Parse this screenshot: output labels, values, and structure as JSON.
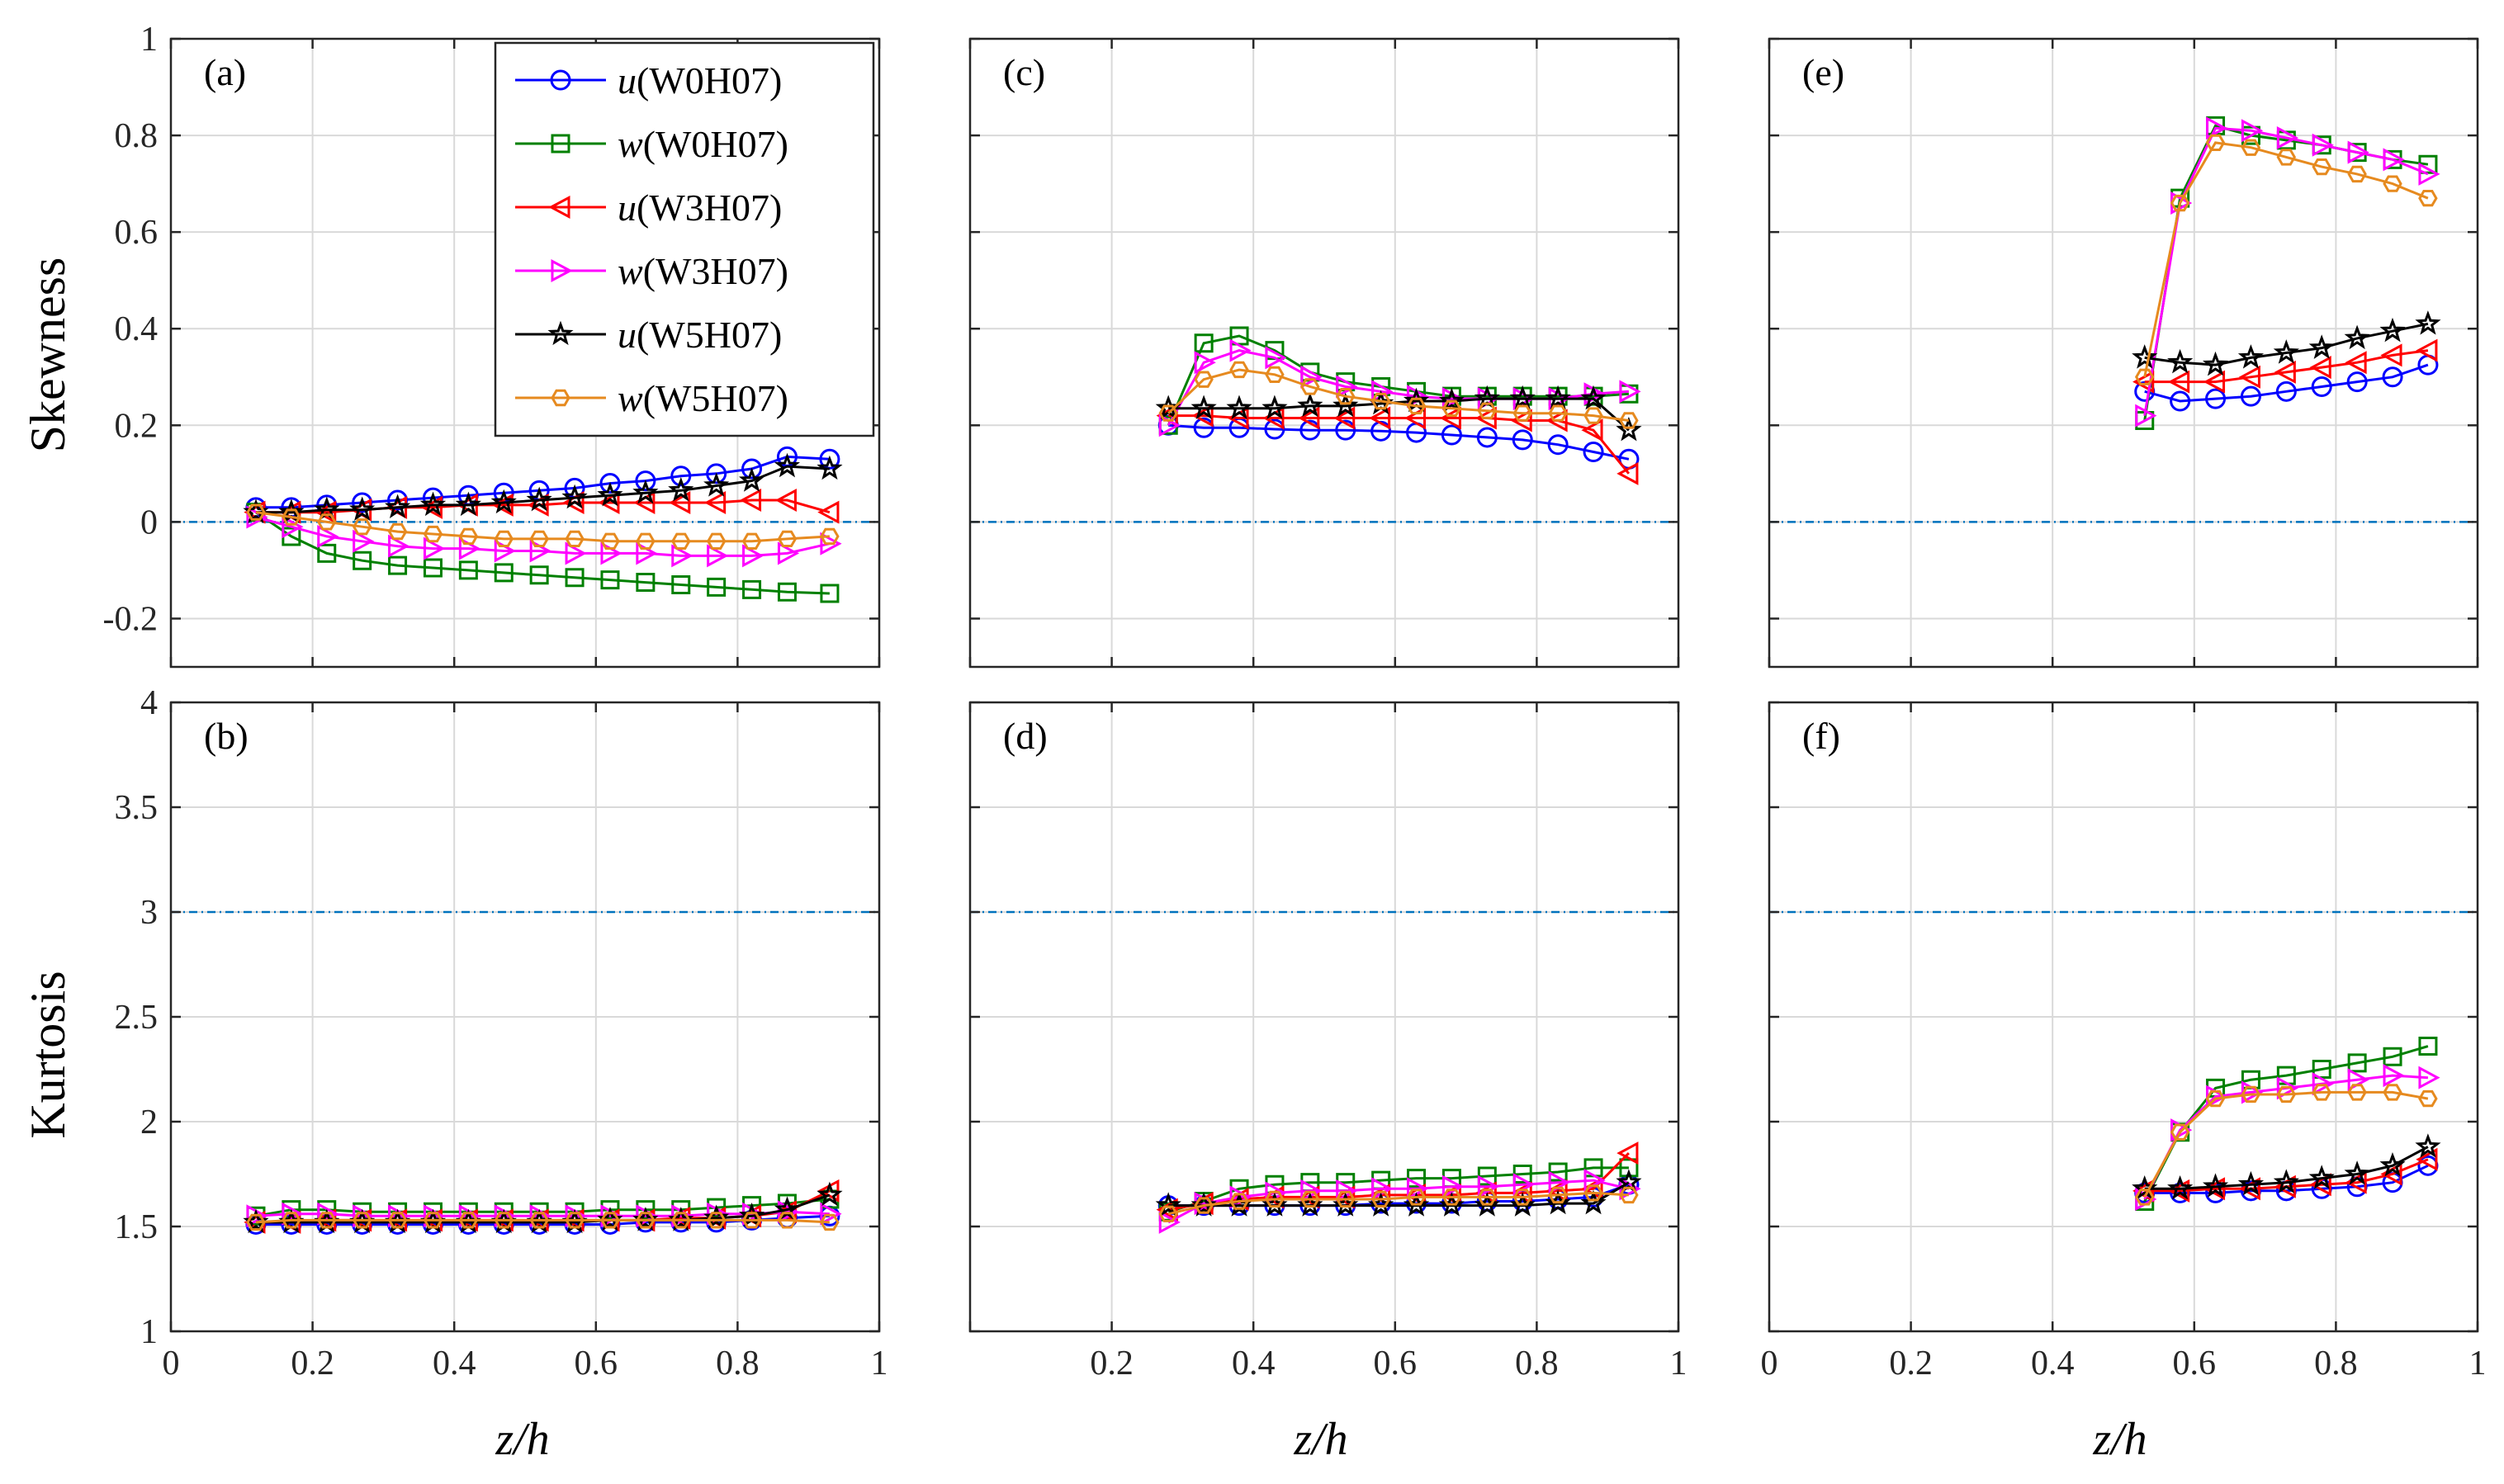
{
  "figure": {
    "ylabel_top": "Skewness",
    "ylabel_bottom": "Kurtosis",
    "xlabel_z": "z",
    "xlabel_rest": "/h"
  },
  "colors": {
    "u_W0H07": "#0000ff",
    "w_W0H07": "#008000",
    "u_W3H07": "#ff0000",
    "w_W3H07": "#ff00ff",
    "u_W5H07": "#000000",
    "w_W5H07": "#e68a1f",
    "reference": "#0072bd",
    "grid": "#d9d9d9",
    "axis": "#262626"
  },
  "legend": [
    {
      "var": "u",
      "label": "(W0H07)",
      "series": "u_W0H07",
      "marker": "circle-icon"
    },
    {
      "var": "w",
      "label": "(W0H07)",
      "series": "w_W0H07",
      "marker": "square-icon"
    },
    {
      "var": "u",
      "label": "(W3H07)",
      "series": "u_W3H07",
      "marker": "triangle-left-icon"
    },
    {
      "var": "w",
      "label": "(W3H07)",
      "series": "w_W3H07",
      "marker": "triangle-right-icon"
    },
    {
      "var": "u",
      "label": "(W5H07)",
      "series": "u_W5H07",
      "marker": "star-icon"
    },
    {
      "var": "w",
      "label": "(W5H07)",
      "series": "w_W5H07",
      "marker": "hexagon-icon"
    }
  ],
  "chart_data": [
    {
      "panel": "(a)",
      "type": "line",
      "row": "skewness",
      "xlim": [
        0,
        1
      ],
      "ylim": [
        -0.3,
        1
      ],
      "xticks": [
        "0",
        "0.2",
        "0.4",
        "0.6",
        "0.8",
        "1"
      ],
      "yticks": [
        "-0.2",
        "0",
        "0.2",
        "0.4",
        "0.6",
        "0.8",
        "1"
      ],
      "yticks_values": [
        -0.2,
        0,
        0.2,
        0.4,
        0.6,
        0.8,
        1
      ],
      "reference_y": 0,
      "x": [
        0.12,
        0.17,
        0.22,
        0.27,
        0.32,
        0.37,
        0.42,
        0.47,
        0.52,
        0.57,
        0.62,
        0.67,
        0.72,
        0.77,
        0.82,
        0.87,
        0.93
      ],
      "series": [
        {
          "name": "u(W0H07)",
          "key": "u_W0H07",
          "marker": "circle",
          "values": [
            0.03,
            0.03,
            0.035,
            0.04,
            0.045,
            0.05,
            0.055,
            0.06,
            0.065,
            0.07,
            0.08,
            0.085,
            0.095,
            0.1,
            0.11,
            0.135,
            0.13
          ]
        },
        {
          "name": "w(W0H07)",
          "key": "w_W0H07",
          "marker": "square",
          "values": [
            0.02,
            -0.03,
            -0.065,
            -0.08,
            -0.09,
            -0.095,
            -0.1,
            -0.105,
            -0.11,
            -0.115,
            -0.12,
            -0.125,
            -0.13,
            -0.135,
            -0.14,
            -0.145,
            -0.148
          ]
        },
        {
          "name": "u(W3H07)",
          "key": "u_W3H07",
          "marker": "triangle-left",
          "values": [
            0.02,
            0.02,
            0.02,
            0.025,
            0.03,
            0.03,
            0.035,
            0.035,
            0.035,
            0.04,
            0.04,
            0.04,
            0.04,
            0.04,
            0.045,
            0.045,
            0.02
          ]
        },
        {
          "name": "w(W3H07)",
          "key": "w_W3H07",
          "marker": "triangle-right",
          "values": [
            0.01,
            -0.01,
            -0.03,
            -0.04,
            -0.05,
            -0.055,
            -0.055,
            -0.06,
            -0.06,
            -0.065,
            -0.065,
            -0.065,
            -0.07,
            -0.07,
            -0.07,
            -0.065,
            -0.045
          ]
        },
        {
          "name": "u(W5H07)",
          "key": "u_W5H07",
          "marker": "star",
          "values": [
            0.02,
            0.02,
            0.025,
            0.025,
            0.03,
            0.035,
            0.035,
            0.04,
            0.045,
            0.05,
            0.055,
            0.06,
            0.065,
            0.075,
            0.085,
            0.115,
            0.11
          ]
        },
        {
          "name": "w(W5H07)",
          "key": "w_W5H07",
          "marker": "hexagon",
          "values": [
            0.02,
            0.01,
            0.0,
            -0.01,
            -0.02,
            -0.025,
            -0.03,
            -0.035,
            -0.035,
            -0.035,
            -0.04,
            -0.04,
            -0.04,
            -0.04,
            -0.04,
            -0.035,
            -0.03
          ]
        }
      ]
    },
    {
      "panel": "(b)",
      "type": "line",
      "row": "kurtosis",
      "xlim": [
        0,
        1
      ],
      "ylim": [
        1,
        4
      ],
      "xticks": [
        "0",
        "0.2",
        "0.4",
        "0.6",
        "0.8",
        "1"
      ],
      "yticks": [
        "1",
        "1.5",
        "2",
        "2.5",
        "3",
        "3.5",
        "4"
      ],
      "yticks_values": [
        1,
        1.5,
        2,
        2.5,
        3,
        3.5,
        4
      ],
      "reference_y": 3,
      "x": [
        0.12,
        0.17,
        0.22,
        0.27,
        0.32,
        0.37,
        0.42,
        0.47,
        0.52,
        0.57,
        0.62,
        0.67,
        0.72,
        0.77,
        0.82,
        0.87,
        0.93
      ],
      "series": [
        {
          "name": "u(W0H07)",
          "key": "u_W0H07",
          "marker": "circle",
          "values": [
            1.51,
            1.51,
            1.51,
            1.51,
            1.51,
            1.51,
            1.51,
            1.51,
            1.51,
            1.51,
            1.51,
            1.52,
            1.52,
            1.52,
            1.53,
            1.54,
            1.55
          ]
        },
        {
          "name": "w(W0H07)",
          "key": "w_W0H07",
          "marker": "square",
          "values": [
            1.55,
            1.58,
            1.58,
            1.57,
            1.57,
            1.57,
            1.57,
            1.57,
            1.57,
            1.57,
            1.58,
            1.58,
            1.58,
            1.59,
            1.6,
            1.61,
            1.63
          ]
        },
        {
          "name": "u(W3H07)",
          "key": "u_W3H07",
          "marker": "triangle-left",
          "values": [
            1.52,
            1.52,
            1.53,
            1.53,
            1.53,
            1.53,
            1.53,
            1.53,
            1.53,
            1.53,
            1.53,
            1.53,
            1.54,
            1.54,
            1.55,
            1.57,
            1.67
          ]
        },
        {
          "name": "w(W3H07)",
          "key": "w_W3H07",
          "marker": "triangle-right",
          "values": [
            1.55,
            1.56,
            1.56,
            1.55,
            1.55,
            1.55,
            1.55,
            1.55,
            1.55,
            1.55,
            1.55,
            1.55,
            1.55,
            1.56,
            1.56,
            1.57,
            1.56
          ]
        },
        {
          "name": "u(W5H07)",
          "key": "u_W5H07",
          "marker": "star",
          "values": [
            1.52,
            1.52,
            1.52,
            1.52,
            1.52,
            1.52,
            1.52,
            1.52,
            1.52,
            1.52,
            1.53,
            1.53,
            1.53,
            1.54,
            1.55,
            1.58,
            1.65
          ]
        },
        {
          "name": "w(W5H07)",
          "key": "w_W5H07",
          "marker": "hexagon",
          "values": [
            1.52,
            1.53,
            1.53,
            1.53,
            1.53,
            1.53,
            1.53,
            1.53,
            1.53,
            1.53,
            1.53,
            1.53,
            1.53,
            1.53,
            1.53,
            1.53,
            1.52
          ]
        }
      ]
    },
    {
      "panel": "(c)",
      "type": "line",
      "row": "skewness",
      "xlim": [
        0,
        1
      ],
      "ylim": [
        -0.3,
        1
      ],
      "xticks": [
        "",
        "0.2",
        "0.4",
        "0.6",
        "0.8",
        "1"
      ],
      "yticks": [],
      "yticks_values": [
        -0.2,
        0,
        0.2,
        0.4,
        0.6,
        0.8,
        1
      ],
      "reference_y": 0,
      "x": [
        0.28,
        0.33,
        0.38,
        0.43,
        0.48,
        0.53,
        0.58,
        0.63,
        0.68,
        0.73,
        0.78,
        0.83,
        0.88,
        0.93
      ],
      "series": [
        {
          "name": "u(W0H07)",
          "key": "u_W0H07",
          "marker": "circle",
          "values": [
            0.2,
            0.195,
            0.195,
            0.192,
            0.19,
            0.19,
            0.188,
            0.185,
            0.18,
            0.175,
            0.17,
            0.16,
            0.145,
            0.13
          ]
        },
        {
          "name": "w(W0H07)",
          "key": "w_W0H07",
          "marker": "square",
          "values": [
            0.2,
            0.37,
            0.385,
            0.355,
            0.31,
            0.29,
            0.28,
            0.27,
            0.26,
            0.26,
            0.26,
            0.26,
            0.26,
            0.265
          ]
        },
        {
          "name": "u(W3H07)",
          "key": "u_W3H07",
          "marker": "triangle-left",
          "values": [
            0.22,
            0.22,
            0.215,
            0.215,
            0.215,
            0.215,
            0.215,
            0.215,
            0.215,
            0.215,
            0.21,
            0.21,
            0.19,
            0.1
          ]
        },
        {
          "name": "w(W3H07)",
          "key": "w_W3H07",
          "marker": "triangle-right",
          "values": [
            0.2,
            0.33,
            0.355,
            0.34,
            0.3,
            0.28,
            0.27,
            0.26,
            0.255,
            0.255,
            0.255,
            0.255,
            0.265,
            0.27
          ]
        },
        {
          "name": "u(W5H07)",
          "key": "u_W5H07",
          "marker": "star",
          "values": [
            0.235,
            0.235,
            0.235,
            0.235,
            0.24,
            0.24,
            0.245,
            0.25,
            0.25,
            0.255,
            0.255,
            0.255,
            0.255,
            0.19
          ]
        },
        {
          "name": "w(W5H07)",
          "key": "w_W5H07",
          "marker": "hexagon",
          "values": [
            0.225,
            0.295,
            0.315,
            0.305,
            0.28,
            0.26,
            0.25,
            0.24,
            0.235,
            0.23,
            0.225,
            0.225,
            0.22,
            0.21
          ]
        }
      ]
    },
    {
      "panel": "(d)",
      "type": "line",
      "row": "kurtosis",
      "xlim": [
        0,
        1
      ],
      "ylim": [
        1,
        4
      ],
      "xticks": [
        "",
        "0.2",
        "0.4",
        "0.6",
        "0.8",
        "1"
      ],
      "yticks": [],
      "yticks_values": [
        1,
        1.5,
        2,
        2.5,
        3,
        3.5,
        4
      ],
      "reference_y": 3,
      "x": [
        0.28,
        0.33,
        0.38,
        0.43,
        0.48,
        0.53,
        0.58,
        0.63,
        0.68,
        0.73,
        0.78,
        0.83,
        0.88,
        0.93
      ],
      "series": [
        {
          "name": "u(W0H07)",
          "key": "u_W0H07",
          "marker": "circle",
          "values": [
            1.6,
            1.6,
            1.6,
            1.6,
            1.6,
            1.6,
            1.61,
            1.61,
            1.61,
            1.62,
            1.62,
            1.63,
            1.64,
            1.7
          ]
        },
        {
          "name": "w(W0H07)",
          "key": "w_W0H07",
          "marker": "square",
          "values": [
            1.57,
            1.62,
            1.68,
            1.7,
            1.71,
            1.71,
            1.72,
            1.73,
            1.73,
            1.74,
            1.75,
            1.76,
            1.78,
            1.78
          ]
        },
        {
          "name": "u(W3H07)",
          "key": "u_W3H07",
          "marker": "triangle-left",
          "values": [
            1.58,
            1.61,
            1.63,
            1.64,
            1.64,
            1.64,
            1.65,
            1.65,
            1.65,
            1.66,
            1.66,
            1.67,
            1.68,
            1.85
          ]
        },
        {
          "name": "w(W3H07)",
          "key": "w_W3H07",
          "marker": "triangle-right",
          "values": [
            1.52,
            1.61,
            1.64,
            1.66,
            1.67,
            1.67,
            1.68,
            1.68,
            1.69,
            1.69,
            1.7,
            1.71,
            1.72,
            1.68
          ]
        },
        {
          "name": "u(W5H07)",
          "key": "u_W5H07",
          "marker": "star",
          "values": [
            1.6,
            1.6,
            1.6,
            1.6,
            1.6,
            1.6,
            1.6,
            1.6,
            1.6,
            1.6,
            1.6,
            1.61,
            1.61,
            1.71
          ]
        },
        {
          "name": "w(W5H07)",
          "key": "w_W5H07",
          "marker": "hexagon",
          "values": [
            1.56,
            1.6,
            1.62,
            1.63,
            1.63,
            1.63,
            1.63,
            1.64,
            1.64,
            1.64,
            1.64,
            1.65,
            1.66,
            1.65
          ]
        }
      ]
    },
    {
      "panel": "(e)",
      "type": "line",
      "row": "skewness",
      "xlim": [
        0,
        1
      ],
      "ylim": [
        -0.3,
        1
      ],
      "xticks": [
        "0",
        "0.2",
        "0.4",
        "0.6",
        "0.8",
        "1"
      ],
      "yticks": [],
      "yticks_values": [
        -0.2,
        0,
        0.2,
        0.4,
        0.6,
        0.8,
        1
      ],
      "reference_y": 0,
      "x": [
        0.53,
        0.58,
        0.63,
        0.68,
        0.73,
        0.78,
        0.83,
        0.88,
        0.93
      ],
      "series": [
        {
          "name": "u(W0H07)",
          "key": "u_W0H07",
          "marker": "circle",
          "values": [
            0.27,
            0.25,
            0.255,
            0.26,
            0.27,
            0.28,
            0.29,
            0.3,
            0.325
          ]
        },
        {
          "name": "w(W0H07)",
          "key": "w_W0H07",
          "marker": "square",
          "values": [
            0.21,
            0.67,
            0.82,
            0.8,
            0.79,
            0.78,
            0.765,
            0.75,
            0.74
          ]
        },
        {
          "name": "u(W3H07)",
          "key": "u_W3H07",
          "marker": "triangle-left",
          "values": [
            0.29,
            0.29,
            0.29,
            0.3,
            0.31,
            0.32,
            0.33,
            0.345,
            0.355
          ]
        },
        {
          "name": "w(W3H07)",
          "key": "w_W3H07",
          "marker": "triangle-right",
          "values": [
            0.22,
            0.66,
            0.815,
            0.81,
            0.795,
            0.78,
            0.765,
            0.75,
            0.72
          ]
        },
        {
          "name": "u(W5H07)",
          "key": "u_W5H07",
          "marker": "star",
          "values": [
            0.34,
            0.33,
            0.325,
            0.34,
            0.35,
            0.36,
            0.38,
            0.395,
            0.41
          ]
        },
        {
          "name": "w(W5H07)",
          "key": "w_W5H07",
          "marker": "hexagon",
          "values": [
            0.3,
            0.66,
            0.785,
            0.775,
            0.755,
            0.735,
            0.72,
            0.7,
            0.67
          ]
        }
      ]
    },
    {
      "panel": "(f)",
      "type": "line",
      "row": "kurtosis",
      "xlim": [
        0,
        1
      ],
      "ylim": [
        1,
        4
      ],
      "xticks": [
        "0",
        "0.2",
        "0.4",
        "0.6",
        "0.8",
        "1"
      ],
      "yticks": [],
      "yticks_values": [
        1,
        1.5,
        2,
        2.5,
        3,
        3.5,
        4
      ],
      "reference_y": 3,
      "x": [
        0.53,
        0.58,
        0.63,
        0.68,
        0.73,
        0.78,
        0.83,
        0.88,
        0.93
      ],
      "series": [
        {
          "name": "u(W0H07)",
          "key": "u_W0H07",
          "marker": "circle",
          "values": [
            1.66,
            1.66,
            1.66,
            1.67,
            1.67,
            1.68,
            1.69,
            1.71,
            1.79
          ]
        },
        {
          "name": "w(W0H07)",
          "key": "w_W0H07",
          "marker": "square",
          "values": [
            1.62,
            1.95,
            2.16,
            2.2,
            2.22,
            2.25,
            2.28,
            2.31,
            2.36
          ]
        },
        {
          "name": "u(W3H07)",
          "key": "u_W3H07",
          "marker": "triangle-left",
          "values": [
            1.67,
            1.67,
            1.68,
            1.68,
            1.69,
            1.7,
            1.71,
            1.75,
            1.82
          ]
        },
        {
          "name": "w(W3H07)",
          "key": "w_W3H07",
          "marker": "triangle-right",
          "values": [
            1.63,
            1.96,
            2.12,
            2.14,
            2.16,
            2.18,
            2.2,
            2.22,
            2.21
          ]
        },
        {
          "name": "u(W5H07)",
          "key": "u_W5H07",
          "marker": "star",
          "values": [
            1.68,
            1.68,
            1.69,
            1.7,
            1.71,
            1.73,
            1.75,
            1.79,
            1.88
          ]
        },
        {
          "name": "w(W5H07)",
          "key": "w_W5H07",
          "marker": "hexagon",
          "values": [
            1.64,
            1.95,
            2.11,
            2.13,
            2.13,
            2.14,
            2.14,
            2.14,
            2.11
          ]
        }
      ]
    }
  ]
}
